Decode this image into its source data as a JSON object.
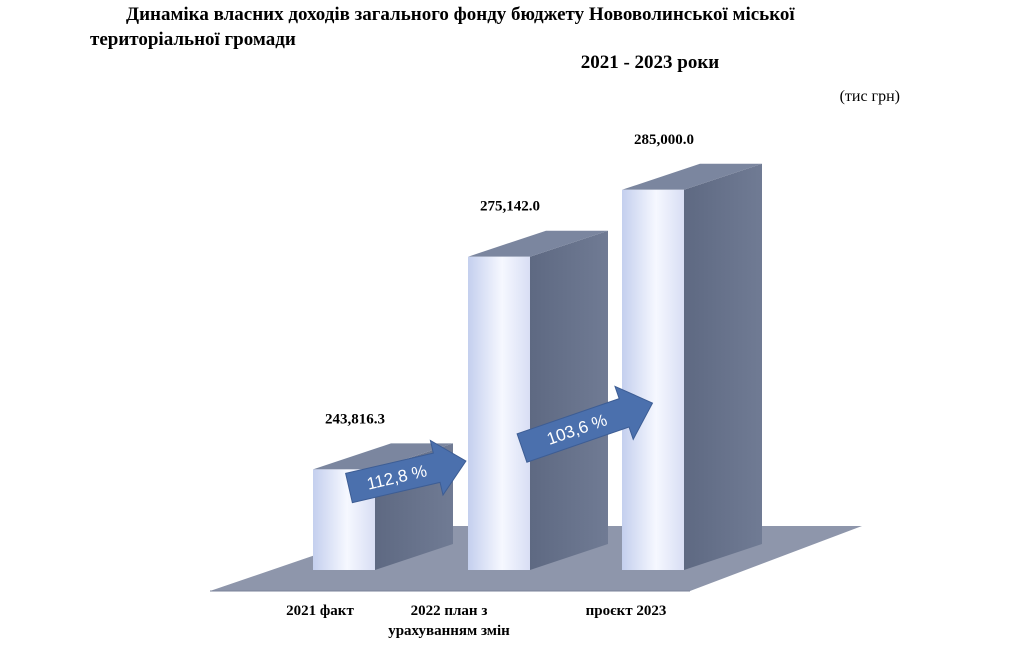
{
  "header": {
    "title_line1": "Динаміка власних  доходів загального фонду бюджету Нововолинської міської",
    "title_line2": "територіальної громади",
    "years": "2021 - 2023 роки",
    "unit": "(тис грн)"
  },
  "chart_data": {
    "type": "bar",
    "title": "Динаміка власних  доходів загального фонду бюджету Нововолинської міської територіальної громади",
    "subtitle": "2021 - 2023 роки",
    "ylabel": "(тис грн)",
    "categories": [
      [
        "2021 факт"
      ],
      [
        "2022 план з",
        "урахуванням змін"
      ],
      [
        "проєкт 2023"
      ]
    ],
    "values": [
      243816.3,
      275142.0,
      285000.0
    ],
    "value_labels": [
      "243,816.3",
      "275,142.0",
      "285,000.0"
    ],
    "annotations": [
      "112,8 %",
      "103,6 %"
    ],
    "ylim": [
      229000,
      286000
    ],
    "grid": false,
    "legend": "none",
    "colors": {
      "bar_front_left": "#c7d1ee",
      "bar_front_mid": "#f4f6ff",
      "bar_side": "#66718a",
      "bar_top": "#7b869f",
      "floor": "#8e96ab",
      "arrow": "#4b70ad"
    }
  }
}
